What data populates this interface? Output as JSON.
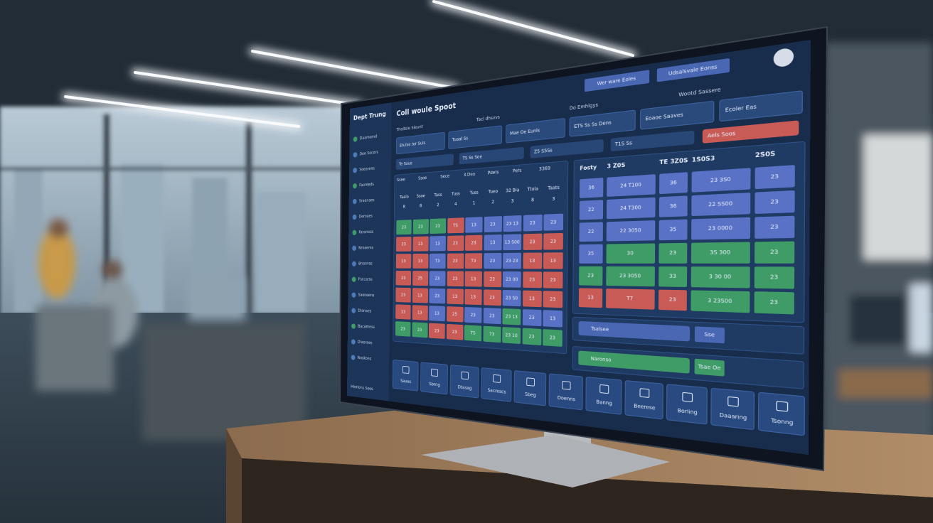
{
  "screen": {
    "sidebar_title": "Dept Trung",
    "title": "Coll woule Spoot",
    "top_buttons": [
      "Wer ware Eoles",
      "Udsalsvale Eonss"
    ],
    "sidebar_items": [
      "Daamomd",
      "Dee Socors",
      "Soearens",
      "Faomeds",
      "Sraonaes",
      "Deroaes",
      "Faraness",
      "Nroaems",
      "Bnaonss",
      "Fsccarss",
      "Saoneens",
      "Dianaes",
      "Bacamess",
      "Dlaorees",
      "Naskoes"
    ],
    "sidebar_footer": "Hlorions Soos",
    "toolbar": [
      "Tholtsle Sleunt",
      "Tacl dhsvvs",
      "Do Emhlgys",
      "Wootd Sassere"
    ],
    "cards": [
      "Etulse tor Suls",
      "Tuaal Ss",
      "Mae Oe Eunls",
      "ETS Ss Ss Dens",
      "Eoaoe Saaves",
      "Ecoler Eas"
    ],
    "chips": [
      "Te Ssue",
      "TS Ss Soe",
      "Z5 S5Ss",
      "T1S Ss",
      "Aels Soos"
    ],
    "palette": {
      "g": "#3f9c66",
      "r": "#c95b56",
      "b": "#5a72c6"
    },
    "left_table": {
      "header": [
        "Ssee",
        "Ssoe",
        "Sece",
        "3.Deo",
        "Pdefs",
        "Pefs",
        "3369"
      ],
      "columns": [
        "Taalo",
        "Ssoe",
        "Tass",
        "Tuss",
        "Tuss",
        "Tueo",
        "32 Bia",
        "Ttola",
        "Taats"
      ],
      "numbers": [
        "8",
        "8",
        "2",
        "4",
        "1",
        "2",
        "3",
        "8",
        "3"
      ],
      "rows": [
        [
          "23",
          "23",
          "23",
          "TS",
          "13",
          "23",
          "23 13",
          "23",
          "23"
        ],
        [
          "23",
          "13",
          "13",
          "23",
          "23",
          "13",
          "13 S00",
          "23",
          "23"
        ],
        [
          "13",
          "13",
          "T3",
          "23",
          "T3",
          "23",
          "23 23",
          "13",
          "13"
        ],
        [
          "23",
          "25",
          "23",
          "23",
          "13",
          "23",
          "23 00",
          "23",
          "23"
        ],
        [
          "23",
          "13",
          "23",
          "13",
          "13",
          "23",
          "23 S0",
          "13",
          "23"
        ],
        [
          "13",
          "13",
          "13",
          "25",
          "23",
          "23",
          "23 13",
          "23",
          "13"
        ],
        [
          "23",
          "23",
          "23",
          "23",
          "TS",
          "73",
          "23 10",
          "23",
          "23"
        ]
      ],
      "colors": [
        [
          "g",
          "g",
          "g",
          "r",
          "b",
          "b",
          "b",
          "b",
          "b"
        ],
        [
          "r",
          "r",
          "b",
          "r",
          "r",
          "b",
          "b",
          "r",
          "r"
        ],
        [
          "r",
          "r",
          "b",
          "r",
          "r",
          "b",
          "b",
          "r",
          "r"
        ],
        [
          "r",
          "r",
          "b",
          "r",
          "r",
          "r",
          "b",
          "r",
          "r"
        ],
        [
          "r",
          "r",
          "b",
          "r",
          "r",
          "r",
          "b",
          "r",
          "r"
        ],
        [
          "r",
          "r",
          "b",
          "r",
          "b",
          "b",
          "g",
          "b",
          "b"
        ],
        [
          "g",
          "g",
          "r",
          "r",
          "g",
          "g",
          "g",
          "g",
          "g"
        ]
      ]
    },
    "right_table": {
      "header": [
        "Fosty",
        "3 Z0S",
        "TE 3Z0S",
        "1S0S3",
        "2S0S"
      ],
      "rows": [
        [
          "36",
          "24 T100",
          "36",
          "23 3S0",
          "23"
        ],
        [
          "22",
          "24 T300",
          "36",
          "22 SS00",
          "23"
        ],
        [
          "22",
          "22 3050",
          "35",
          "23 0000",
          "23"
        ],
        [
          "35",
          "30",
          "23",
          "3S 300",
          "23"
        ],
        [
          "23",
          "23 3050",
          "33",
          "3 30 00",
          "23"
        ],
        [
          "13",
          "T7",
          "23",
          "3 23S00",
          "23"
        ]
      ],
      "colors": [
        [
          "b",
          "b",
          "b",
          "b",
          "b"
        ],
        [
          "b",
          "b",
          "b",
          "b",
          "b"
        ],
        [
          "b",
          "b",
          "b",
          "b",
          "b"
        ],
        [
          "b",
          "g",
          "g",
          "g",
          "g"
        ],
        [
          "g",
          "g",
          "g",
          "g",
          "g"
        ],
        [
          "r",
          "r",
          "r",
          "g",
          "g"
        ]
      ]
    },
    "bars": [
      {
        "label": "Tsalsee",
        "badge": "Sse"
      },
      {
        "label": "Naronso",
        "badge": "Tsae Oe"
      }
    ],
    "buttons": [
      "Saves",
      "Sbrng",
      "Dtasag",
      "Sacrescs",
      "Sbeg",
      "Doenns",
      "Banng",
      "Beerese",
      "Borling",
      "Daaaring",
      "Tsonng"
    ]
  }
}
